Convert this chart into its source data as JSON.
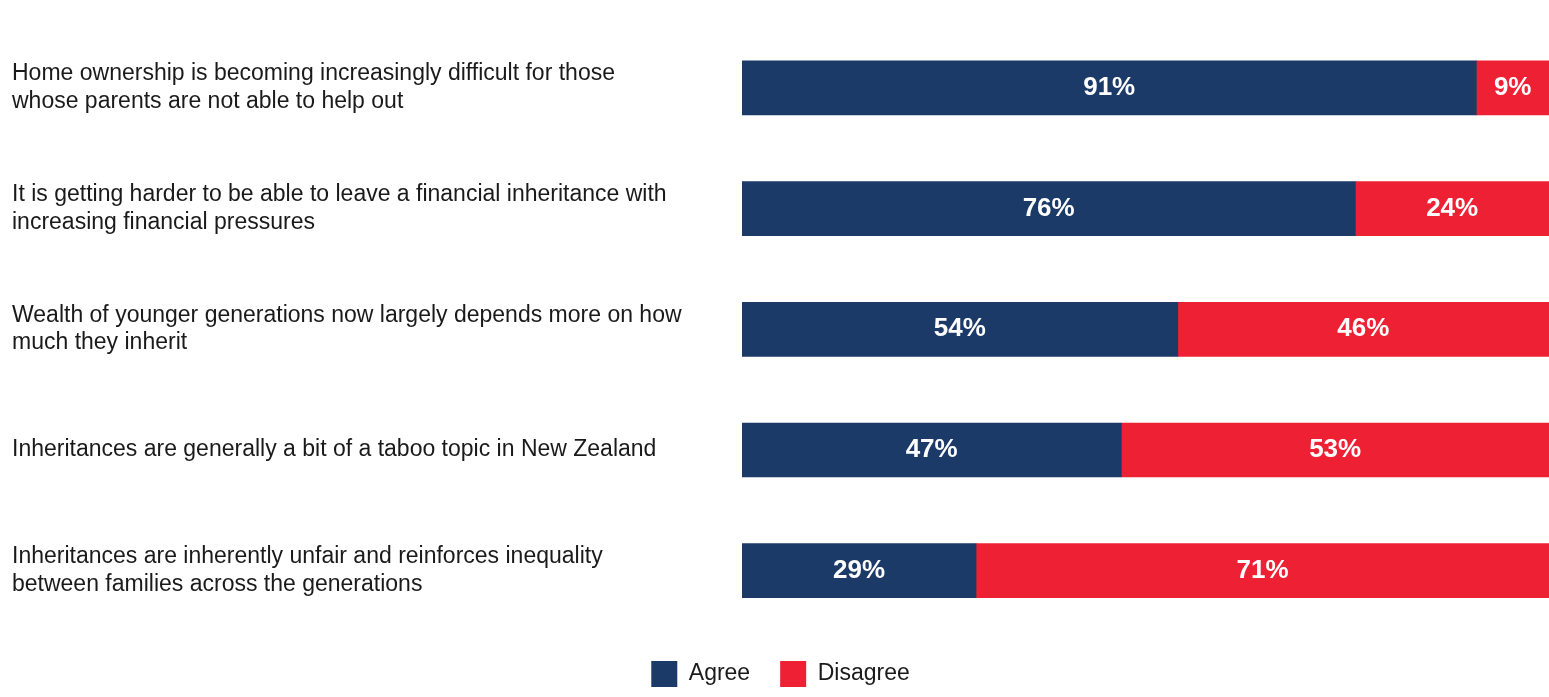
{
  "chart_data": {
    "type": "bar",
    "orientation": "horizontal",
    "stacked": true,
    "categories": [
      "Home ownership is becoming increasingly difficult for those whose parents are not able to help out",
      "It is getting harder to be able to leave a financial inheritance with increasing financial pressures",
      "Wealth of younger generations now largely depends more on how much they inherit",
      "Inheritances are generally a bit of a taboo topic in New Zealand",
      "Inheritances are inherently unfair and reinforces inequality between families across the generations"
    ],
    "series": [
      {
        "name": "Agree",
        "color": "#1b3a68",
        "values": [
          91,
          76,
          54,
          47,
          29
        ],
        "value_labels": [
          "91%",
          "76%",
          "54%",
          "47%",
          "29%"
        ]
      },
      {
        "name": "Disagree",
        "color": "#ee2033",
        "values": [
          9,
          24,
          46,
          53,
          71
        ],
        "value_labels": [
          "9%",
          "24%",
          "46%",
          "53%",
          "71%"
        ]
      }
    ],
    "legend": "bottom"
  }
}
